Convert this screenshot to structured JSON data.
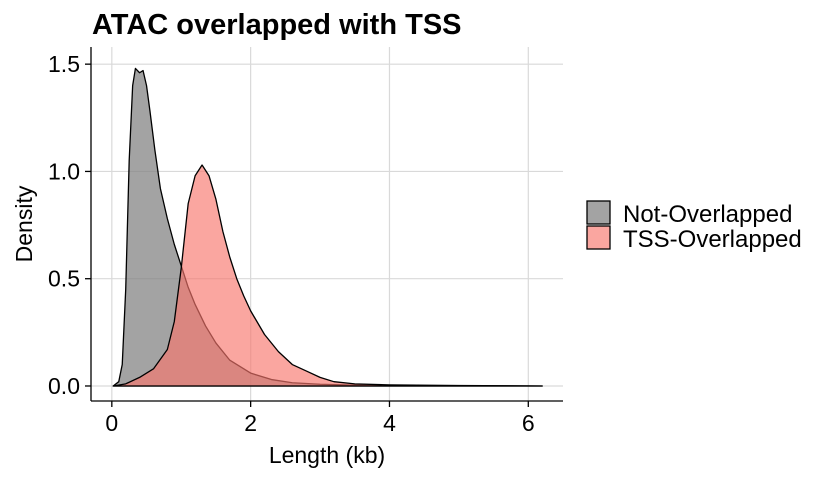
{
  "chart_data": {
    "type": "area",
    "title": "ATAC overlapped with TSS",
    "xlabel": "Length (kb)",
    "ylabel": "Density",
    "xlim": [
      -0.3,
      6.5
    ],
    "ylim": [
      -0.07,
      1.58
    ],
    "x_ticks": [
      0,
      2,
      4,
      6
    ],
    "x_tick_labels": [
      "0",
      "2",
      "4",
      "6"
    ],
    "y_ticks": [
      0.0,
      0.5,
      1.0,
      1.5
    ],
    "y_tick_labels": [
      "0.0",
      "0.5",
      "1.0",
      "1.5"
    ],
    "grid": true,
    "legend_position": "right",
    "series": [
      {
        "name": "Not-Overlapped",
        "color": "#808080",
        "opacity": 0.72,
        "x": [
          0.02,
          0.1,
          0.15,
          0.2,
          0.25,
          0.3,
          0.34,
          0.4,
          0.45,
          0.5,
          0.55,
          0.62,
          0.7,
          0.8,
          0.9,
          1.0,
          1.1,
          1.2,
          1.35,
          1.5,
          1.7,
          2.0,
          2.3,
          2.6,
          3.0,
          3.5,
          4.0,
          5.0,
          6.2
        ],
        "y": [
          0.0,
          0.02,
          0.1,
          0.45,
          1.05,
          1.4,
          1.48,
          1.46,
          1.47,
          1.4,
          1.28,
          1.1,
          0.92,
          0.78,
          0.66,
          0.56,
          0.46,
          0.38,
          0.28,
          0.2,
          0.12,
          0.06,
          0.03,
          0.015,
          0.008,
          0.004,
          0.002,
          0.001,
          0.0
        ]
      },
      {
        "name": "TSS-Overlapped",
        "color": "#F8766D",
        "opacity": 0.65,
        "x": [
          0.02,
          0.2,
          0.4,
          0.6,
          0.8,
          0.9,
          1.0,
          1.1,
          1.2,
          1.3,
          1.4,
          1.5,
          1.6,
          1.7,
          1.8,
          1.9,
          2.0,
          2.2,
          2.4,
          2.6,
          2.8,
          3.0,
          3.2,
          3.5,
          4.0,
          5.0,
          6.2
        ],
        "y": [
          0.0,
          0.01,
          0.04,
          0.08,
          0.17,
          0.3,
          0.55,
          0.85,
          0.98,
          1.03,
          0.98,
          0.87,
          0.72,
          0.6,
          0.5,
          0.42,
          0.35,
          0.24,
          0.16,
          0.1,
          0.07,
          0.04,
          0.02,
          0.01,
          0.005,
          0.002,
          0.0
        ]
      }
    ]
  }
}
